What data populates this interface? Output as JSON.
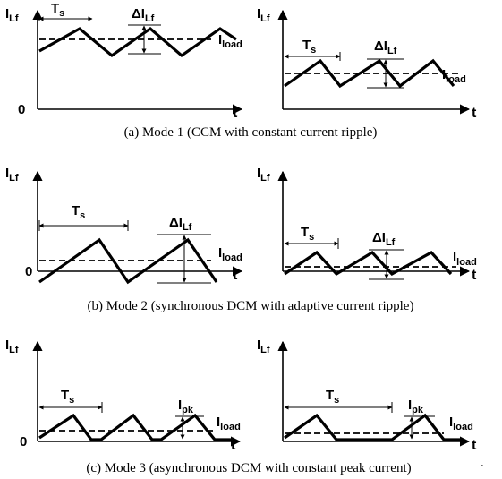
{
  "labels": {
    "y_axis": "I",
    "y_axis_sub": "Lf",
    "t_axis": "t",
    "origin": "0",
    "period": "T",
    "period_sub": "s",
    "ripple": "ΔI",
    "ripple_sub": "Lf",
    "load": "I",
    "load_sub": "load",
    "peak": "I",
    "peak_sub": "pk"
  },
  "captions": {
    "mode1": "(a) Mode 1 (CCM with constant current ripple)",
    "mode2": "(b) Mode 2 (synchronous DCM with adaptive current ripple)",
    "mode3": "(c) Mode 3 (asynchronous DCM with constant peak current)"
  },
  "trailing_mark": "."
}
